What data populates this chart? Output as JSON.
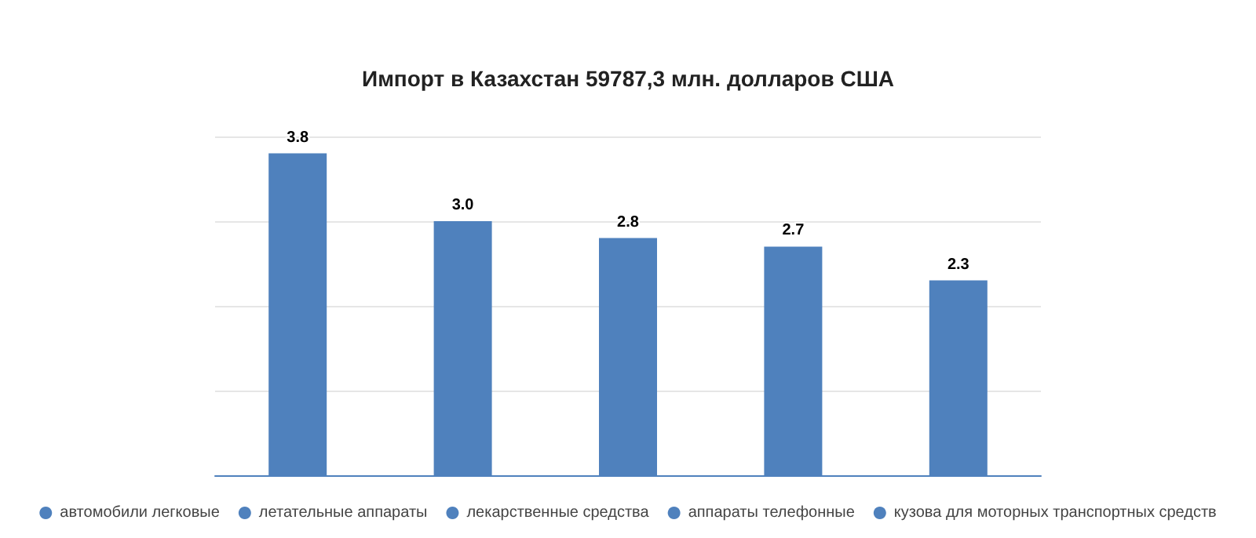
{
  "chart_data": {
    "type": "bar",
    "title": "Импорт в Казахстан 59787,3 млн. долларов США",
    "categories": [
      null,
      null,
      null,
      null,
      null
    ],
    "series": [
      {
        "name": "автомобили легковые",
        "color": "#4f81bd",
        "values": [
          3.8,
          null,
          null,
          null,
          null
        ],
        "value_labels": [
          "3.8",
          null,
          null,
          null,
          null
        ]
      },
      {
        "name": "летательные аппараты",
        "color": "#4f81bd",
        "values": [
          null,
          3.0,
          null,
          null,
          null
        ],
        "value_labels": [
          null,
          "3.0",
          null,
          null,
          null
        ]
      },
      {
        "name": "лекарственные средства",
        "color": "#4f81bd",
        "values": [
          null,
          null,
          2.8,
          null,
          null
        ],
        "value_labels": [
          null,
          null,
          "2.8",
          null,
          null
        ]
      },
      {
        "name": "аппараты телефонные",
        "color": "#4f81bd",
        "values": [
          null,
          null,
          null,
          2.7,
          null
        ],
        "value_labels": [
          null,
          null,
          null,
          "2.7",
          null
        ]
      },
      {
        "name": "кузова для моторных транспортных средств",
        "color": "#4f81bd",
        "values": [
          null,
          null,
          null,
          null,
          2.3
        ],
        "value_labels": [
          null,
          null,
          null,
          null,
          "2.3"
        ]
      }
    ],
    "stacked": true,
    "grid": "y",
    "legend": "bottom"
  }
}
